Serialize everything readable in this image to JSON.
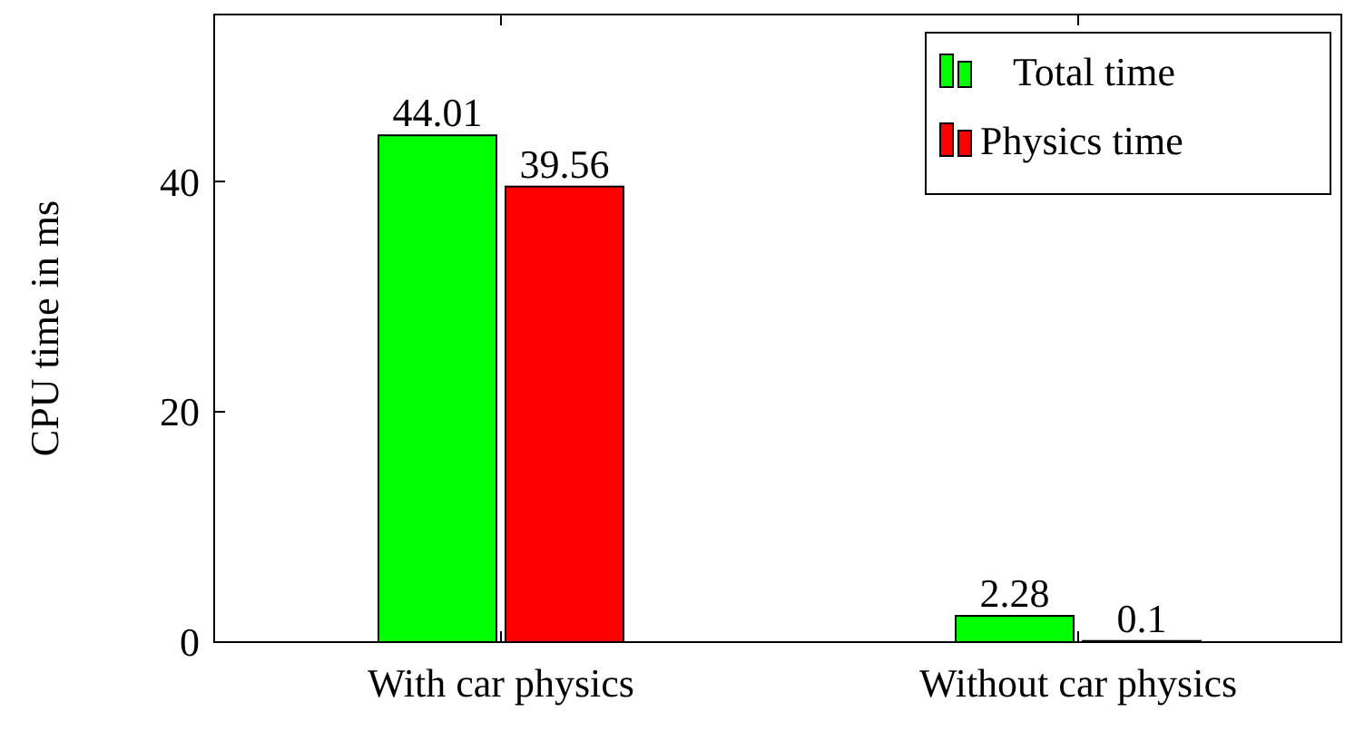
{
  "chart_data": {
    "type": "bar",
    "ylabel": "CPU time in ms",
    "categories": [
      "With car physics",
      "Without car physics"
    ],
    "series": [
      {
        "name": "Total time",
        "color": "#00ff00",
        "values": [
          44.01,
          2.28
        ]
      },
      {
        "name": "Physics time",
        "color": "#ff0000",
        "values": [
          39.56,
          0.1
        ]
      }
    ],
    "ylim": [
      0,
      54.5
    ],
    "yticks": [
      0,
      20,
      40
    ],
    "data_labels": true,
    "legend": "top right"
  }
}
